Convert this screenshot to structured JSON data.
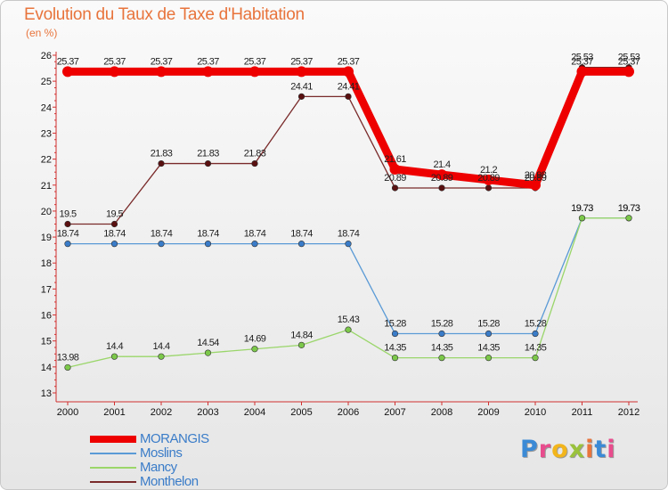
{
  "title": "Evolution du Taux de Taxe d'Habitation",
  "subtitle": "(en %)",
  "logo": {
    "text": "Proxiti",
    "colors": [
      "#3a8ad6",
      "#e84c8c",
      "#f2b51b",
      "#9ac23c",
      "#e8743c",
      "#3a8ad6",
      "#e84c8c"
    ]
  },
  "chart_data": {
    "type": "line",
    "title": "Evolution du Taux de Taxe d'Habitation",
    "ylabel": "(en %)",
    "xlabel": "",
    "x": [
      "2000",
      "2001",
      "2002",
      "2003",
      "2004",
      "2005",
      "2006",
      "2007",
      "2008",
      "2009",
      "2010",
      "2011",
      "2012"
    ],
    "ylim": [
      13,
      26
    ],
    "yticks": [
      "13",
      "14",
      "15",
      "16",
      "17",
      "18",
      "19",
      "20",
      "21",
      "22",
      "23",
      "24",
      "25",
      "26"
    ],
    "grid": false,
    "legend_position": "bottom-left",
    "series": [
      {
        "name": "Monthelon",
        "color": "#7a2a2a",
        "marker": "#5a1010",
        "values": [
          19.5,
          19.5,
          21.83,
          21.83,
          21.83,
          24.41,
          24.41,
          20.89,
          20.89,
          20.89,
          20.89,
          25.53,
          25.53
        ],
        "labels": [
          "19.5",
          "19.5",
          "21.83",
          "21.83",
          "21.83",
          "24.41",
          "24.41",
          "20.89",
          "20.89",
          "20.89",
          "20.89",
          "25.53",
          "25.53"
        ]
      },
      {
        "name": "Moslins",
        "color": "#5a9ad6",
        "marker": "#3a7cc8",
        "values": [
          18.74,
          18.74,
          18.74,
          18.74,
          18.74,
          18.74,
          18.74,
          15.28,
          15.28,
          15.28,
          15.28,
          19.73,
          19.73
        ],
        "labels": [
          "18.74",
          "18.74",
          "18.74",
          "18.74",
          "18.74",
          "18.74",
          "18.74",
          "15.28",
          "15.28",
          "15.28",
          "15.28",
          "19.73",
          "19.73"
        ]
      },
      {
        "name": "Mancy",
        "color": "#9ad66a",
        "marker": "#7cc84a",
        "values": [
          13.98,
          14.4,
          14.4,
          14.54,
          14.69,
          14.84,
          15.43,
          14.35,
          14.35,
          14.35,
          14.35,
          19.73,
          19.73
        ],
        "labels": [
          "13.98",
          "14.4",
          "14.4",
          "14.54",
          "14.69",
          "14.84",
          "15.43",
          "14.35",
          "14.35",
          "14.35",
          "14.35",
          "19.73",
          "19.73"
        ]
      },
      {
        "name": "MORANGIS",
        "color": "#ee0000",
        "marker": "#ee0000",
        "values": [
          25.37,
          25.37,
          25.37,
          25.37,
          25.37,
          25.37,
          25.37,
          21.61,
          21.4,
          21.2,
          21.0,
          25.37,
          25.37
        ],
        "labels": [
          "25.37",
          "25.37",
          "25.37",
          "25.37",
          "25.37",
          "25.37",
          "25.37",
          "21.61",
          "21.4",
          "21.2",
          "20.98",
          "25.37",
          "25.37"
        ]
      }
    ],
    "legend": [
      {
        "name": "MORANGIS",
        "color": "#ee0000"
      },
      {
        "name": "Moslins",
        "color": "#5a9ad6"
      },
      {
        "name": "Mancy",
        "color": "#9ad66a"
      },
      {
        "name": "Monthelon",
        "color": "#7a2a2a"
      }
    ]
  }
}
